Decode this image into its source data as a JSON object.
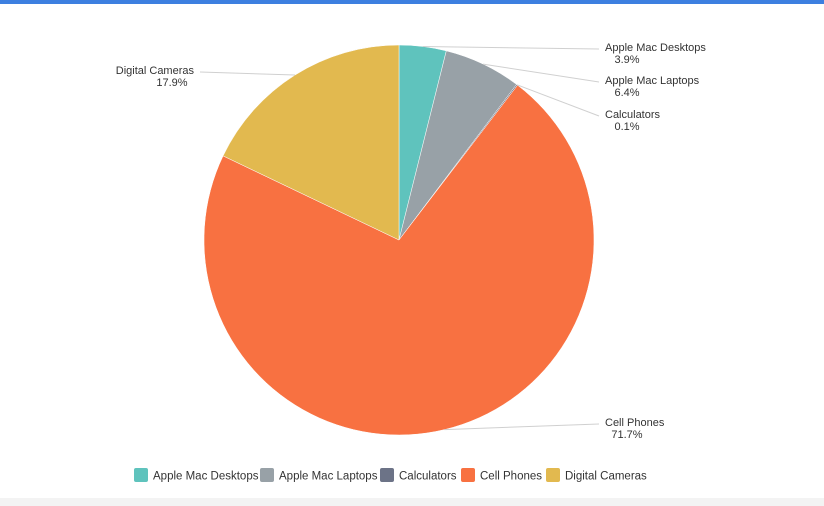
{
  "chart_data": {
    "type": "pie",
    "title": "",
    "legend_position": "bottom",
    "slices": [
      {
        "label": "Apple Mac Desktops",
        "value": 3.9,
        "percent_label": "3.9%",
        "color": "#5fc3bd"
      },
      {
        "label": "Apple Mac Laptops",
        "value": 6.4,
        "percent_label": "6.4%",
        "color": "#98a1a7"
      },
      {
        "label": "Calculators",
        "value": 0.1,
        "percent_label": "0.1%",
        "color": "#6c7387"
      },
      {
        "label": "Cell Phones",
        "value": 71.7,
        "percent_label": "71.7%",
        "color": "#f87141"
      },
      {
        "label": "Digital Cameras",
        "value": 17.9,
        "percent_label": "17.9%",
        "color": "#e2b94f"
      }
    ]
  },
  "colors": {
    "top_accent": "#3d7fe0",
    "leader_line": "#d0d0d0",
    "text": "#333333"
  }
}
